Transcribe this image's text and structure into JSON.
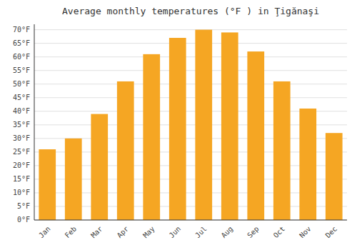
{
  "chart_data": {
    "type": "bar",
    "title": "Average monthly temperatures (°F ) in Ţigănaşi",
    "categories": [
      "Jan",
      "Feb",
      "Mar",
      "Apr",
      "May",
      "Jun",
      "Jul",
      "Aug",
      "Sep",
      "Oct",
      "Nov",
      "Dec"
    ],
    "values": [
      26,
      30,
      39,
      51,
      61,
      67,
      70,
      69,
      62,
      51,
      41,
      32
    ],
    "color": "#F5A623",
    "ylim": [
      0,
      72
    ],
    "yticks": [
      {
        "value": 0,
        "label": "0°F"
      },
      {
        "value": 5,
        "label": "5°F"
      },
      {
        "value": 10,
        "label": "10°F"
      },
      {
        "value": 15,
        "label": "15°F"
      },
      {
        "value": 20,
        "label": "20°F"
      },
      {
        "value": 25,
        "label": "25°F"
      },
      {
        "value": 30,
        "label": "30°F"
      },
      {
        "value": 35,
        "label": "35°F"
      },
      {
        "value": 40,
        "label": "40°F"
      },
      {
        "value": 45,
        "label": "45°F"
      },
      {
        "value": 50,
        "label": "50°F"
      },
      {
        "value": 55,
        "label": "55°F"
      },
      {
        "value": 60,
        "label": "60°F"
      },
      {
        "value": 65,
        "label": "65°F"
      },
      {
        "value": 70,
        "label": "70°F"
      }
    ],
    "grid": true
  }
}
